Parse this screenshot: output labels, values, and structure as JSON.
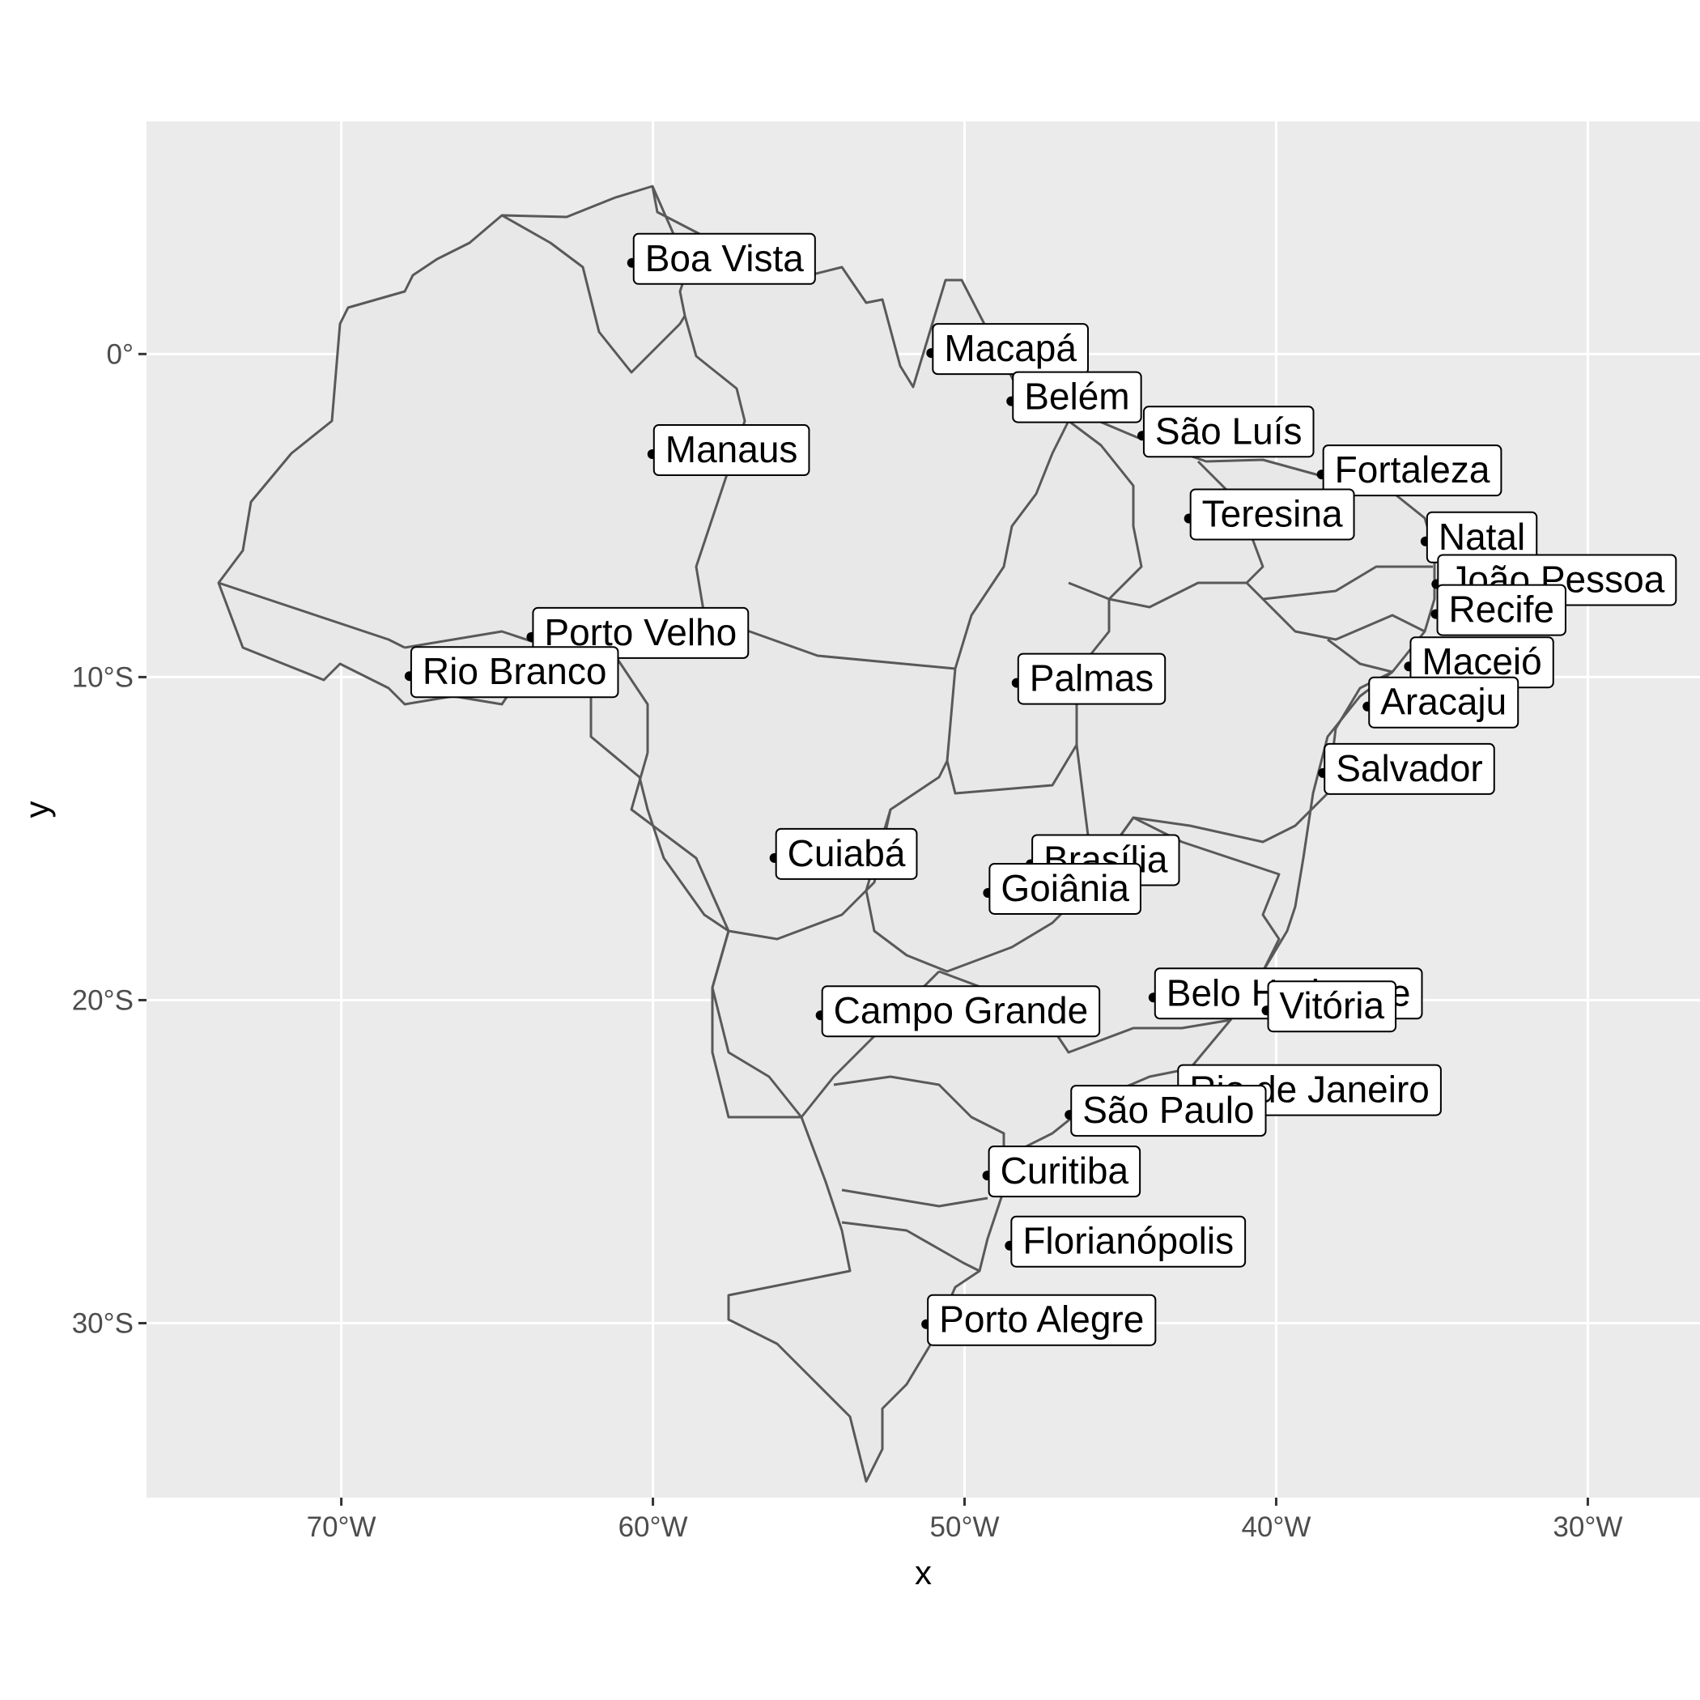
{
  "axes": {
    "xlabel": "x",
    "ylabel": "y",
    "x_ticks": [
      {
        "lon": -70,
        "label": "70°W"
      },
      {
        "lon": -60,
        "label": "60°W"
      },
      {
        "lon": -50,
        "label": "50°W"
      },
      {
        "lon": -40,
        "label": "40°W"
      },
      {
        "lon": -30,
        "label": "30°W"
      }
    ],
    "y_ticks": [
      {
        "lat": 0,
        "label": "0°"
      },
      {
        "lat": -10,
        "label": "10°S"
      },
      {
        "lat": -20,
        "label": "20°S"
      },
      {
        "lat": -30,
        "label": "30°S"
      }
    ],
    "lon_range": [
      -76.25,
      -26.4
    ],
    "lat_range": [
      -35.4,
      7.2
    ],
    "grid": true
  },
  "colors": {
    "panel": "#EBEBEB",
    "state_fill": "#E8E8E8",
    "state_border": "#595959",
    "label_fill": "#FFFFFF"
  },
  "chart_data": {
    "type": "map",
    "cities": [
      {
        "name": "Boa Vista",
        "lon": -60.67,
        "lat": 2.82
      },
      {
        "name": "Macapá",
        "lon": -51.07,
        "lat": 0.03
      },
      {
        "name": "Belém",
        "lon": -48.5,
        "lat": -1.46
      },
      {
        "name": "Manaus",
        "lon": -60.02,
        "lat": -3.1
      },
      {
        "name": "São Luís",
        "lon": -44.3,
        "lat": -2.53
      },
      {
        "name": "Fortaleza",
        "lon": -38.54,
        "lat": -3.73
      },
      {
        "name": "Teresina",
        "lon": -42.8,
        "lat": -5.09
      },
      {
        "name": "Natal",
        "lon": -35.21,
        "lat": -5.8
      },
      {
        "name": "João Pessoa",
        "lon": -34.86,
        "lat": -7.12
      },
      {
        "name": "Recife",
        "lon": -34.88,
        "lat": -8.05
      },
      {
        "name": "Porto Velho",
        "lon": -63.9,
        "lat": -8.76
      },
      {
        "name": "Maceió",
        "lon": -35.74,
        "lat": -9.67
      },
      {
        "name": "Rio Branco",
        "lon": -67.81,
        "lat": -9.97
      },
      {
        "name": "Palmas",
        "lon": -48.33,
        "lat": -10.18
      },
      {
        "name": "Aracaju",
        "lon": -37.07,
        "lat": -10.91
      },
      {
        "name": "Salvador",
        "lon": -38.5,
        "lat": -12.97
      },
      {
        "name": "Cuiabá",
        "lon": -56.1,
        "lat": -15.6
      },
      {
        "name": "Brasília",
        "lon": -47.88,
        "lat": -15.79
      },
      {
        "name": "Goiânia",
        "lon": -49.25,
        "lat": -16.68
      },
      {
        "name": "Belo Horizonte",
        "lon": -43.94,
        "lat": -19.92
      },
      {
        "name": "Vitória",
        "lon": -40.31,
        "lat": -20.32
      },
      {
        "name": "Campo Grande",
        "lon": -54.62,
        "lat": -20.47
      },
      {
        "name": "Rio de Janeiro",
        "lon": -43.2,
        "lat": -22.91
      },
      {
        "name": "São Paulo",
        "lon": -46.63,
        "lat": -23.55
      },
      {
        "name": "Curitiba",
        "lon": -49.27,
        "lat": -25.43
      },
      {
        "name": "Florianópolis",
        "lon": -48.55,
        "lat": -27.6
      },
      {
        "name": "Porto Alegre",
        "lon": -51.23,
        "lat": -30.03
      }
    ]
  }
}
